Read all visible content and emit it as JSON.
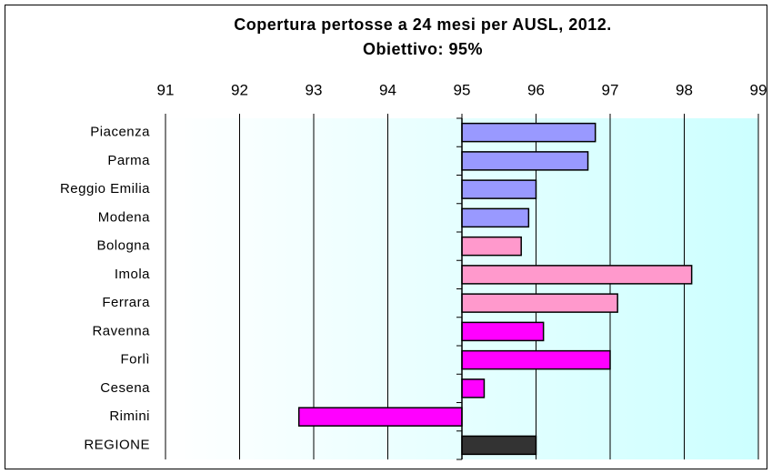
{
  "chart_data": {
    "type": "hbar",
    "title": "Copertura pertosse a 24 mesi per AUSL, 2012.",
    "subtitle": "Obiettivo: 95%",
    "categories": [
      "Piacenza",
      "Parma",
      "Reggio Emilia",
      "Modena",
      "Bologna",
      "Imola",
      "Ferrara",
      "Ravenna",
      "Forlì",
      "Cesena",
      "Rimini",
      "REGIONE"
    ],
    "values": [
      96.8,
      96.7,
      96.0,
      95.9,
      95.8,
      98.1,
      97.1,
      96.1,
      97.0,
      95.3,
      92.8,
      96.0
    ],
    "colors": [
      "#9999ff",
      "#9999ff",
      "#9999ff",
      "#9999ff",
      "#ff99cc",
      "#ff99cc",
      "#ff99cc",
      "#ff00ff",
      "#ff00ff",
      "#ff00ff",
      "#ff00ff",
      "#333333"
    ],
    "baseline": 95,
    "xlim": [
      91,
      99
    ],
    "xticks": [
      91,
      92,
      93,
      94,
      95,
      96,
      97,
      98,
      99
    ],
    "grid": true
  }
}
